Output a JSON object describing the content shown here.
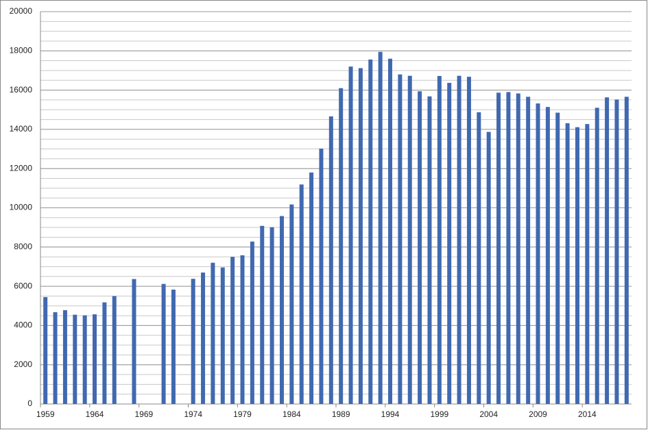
{
  "chart_data": {
    "type": "bar",
    "categories": [
      "1959",
      null,
      null,
      null,
      null,
      "1964",
      null,
      null,
      null,
      null,
      "1969",
      null,
      null,
      null,
      null,
      "1974",
      null,
      null,
      null,
      null,
      "1979",
      null,
      null,
      null,
      null,
      "1984",
      null,
      null,
      null,
      null,
      "1989",
      null,
      null,
      null,
      null,
      "1994",
      null,
      null,
      null,
      null,
      "1999",
      null,
      null,
      null,
      null,
      "2004",
      null,
      null,
      null,
      null,
      "2009",
      null,
      null,
      null,
      null,
      "2014",
      null,
      null,
      null,
      null
    ],
    "values": [
      5450,
      4680,
      4780,
      4550,
      4520,
      4570,
      5180,
      5500,
      null,
      6370,
      null,
      null,
      6120,
      5830,
      null,
      6380,
      6700,
      7200,
      6960,
      7500,
      7580,
      8280,
      9080,
      9010,
      9580,
      10170,
      11190,
      11800,
      13020,
      14660,
      16100,
      17200,
      17120,
      17560,
      17950,
      17600,
      16800,
      16730,
      15940,
      15680,
      16720,
      16370,
      16730,
      16680,
      14870,
      13870,
      15870,
      15900,
      15830,
      15660,
      15320,
      15140,
      14850,
      14310,
      14110,
      14270,
      15100,
      15630,
      15520,
      15660
    ],
    "color": "#4169b0",
    "ylim": [
      0,
      20000
    ],
    "yticks": [
      0,
      2000,
      4000,
      6000,
      8000,
      10000,
      12000,
      14000,
      16000,
      18000,
      20000
    ],
    "grid": true,
    "minor_grid_step": 500
  }
}
